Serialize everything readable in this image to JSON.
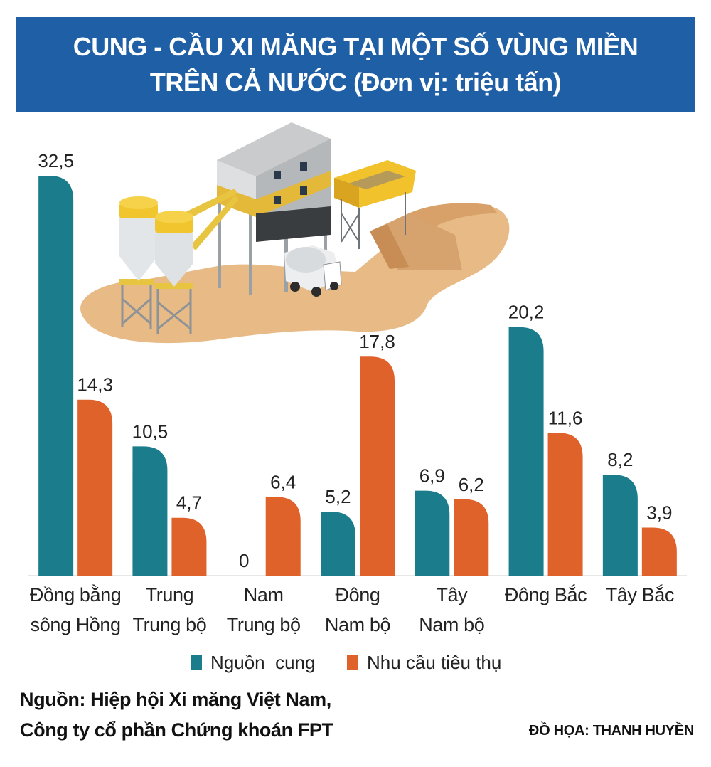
{
  "header": {
    "title_line1": "CUNG - CẦU XI MĂNG TẠI MỘT SỐ VÙNG MIỀN",
    "title_line2": "TRÊN CẢ NƯỚC (Đơn vị: triệu tấn)"
  },
  "chart_data": {
    "type": "bar",
    "title": "CUNG - CẦU XI MĂNG TẠI MỘT SỐ VÙNG MIỀN TRÊN CẢ NƯỚC (Đơn vị: triệu tấn)",
    "categories": [
      [
        "Đồng bằng",
        "sông Hồng"
      ],
      [
        "Trung",
        "Trung bộ"
      ],
      [
        "Nam",
        "Trung bộ"
      ],
      [
        "Đông",
        "Nam bộ"
      ],
      [
        "Tây",
        "Nam bộ"
      ],
      [
        "Đông Bắc"
      ],
      [
        "Tây Bắc"
      ]
    ],
    "series": [
      {
        "name": "Nguồn  cung",
        "color": "#1b7d8c",
        "values": [
          32.5,
          10.5,
          0,
          5.2,
          6.9,
          20.2,
          8.2
        ],
        "labels": [
          "32,5",
          "10,5",
          "0",
          "5,2",
          "6,9",
          "20,2",
          "8,2"
        ]
      },
      {
        "name": "Nhu cầu tiêu thụ",
        "color": "#e0622b",
        "values": [
          14.3,
          4.7,
          6.4,
          17.8,
          6.2,
          11.6,
          3.9
        ],
        "labels": [
          "14,3",
          "4,7",
          "6,4",
          "17,8",
          "6,2",
          "11,6",
          "3,9"
        ]
      }
    ],
    "ylim": [
      0,
      32.5
    ],
    "grid": false,
    "legend_position": "bottom"
  },
  "footer": {
    "source_line1": "Nguồn: Hiệp hội Xi măng Việt Nam,",
    "source_line2": "Công ty cổ phần Chứng khoán FPT",
    "credit": "ĐỒ HỌA: THANH HUYỀN"
  },
  "illustration": {
    "icon": "cement-plant-illustration-icon"
  }
}
